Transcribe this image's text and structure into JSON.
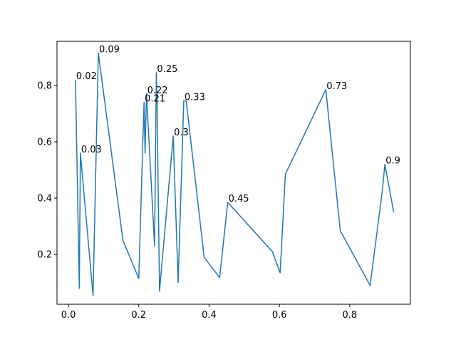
{
  "chart_data": {
    "type": "line",
    "title": "",
    "xlabel": "",
    "ylabel": "",
    "xlim": [
      -0.0325,
      0.9725
    ],
    "ylim": [
      0.0235,
      0.9565
    ],
    "grid": false,
    "x_ticks": [
      0.0,
      0.2,
      0.4,
      0.6,
      0.8
    ],
    "x_tick_labels": [
      "0.0",
      "0.2",
      "0.4",
      "0.6",
      "0.8"
    ],
    "y_ticks": [
      0.2,
      0.4,
      0.6,
      0.8
    ],
    "y_tick_labels": [
      "0.2",
      "0.4",
      "0.6",
      "0.8"
    ],
    "series": [
      {
        "color": "#1f77b4",
        "x": [
          0.02,
          0.031,
          0.034,
          0.07,
          0.085,
          0.155,
          0.2,
          0.215,
          0.218,
          0.222,
          0.245,
          0.25,
          0.252,
          0.259,
          0.298,
          0.312,
          0.328,
          0.335,
          0.386,
          0.43,
          0.453,
          0.58,
          0.602,
          0.617,
          0.732,
          0.773,
          0.858,
          0.893,
          0.9,
          0.925
        ],
        "y": [
          0.82,
          0.08,
          0.56,
          0.055,
          0.915,
          0.25,
          0.115,
          0.74,
          0.56,
          0.77,
          0.23,
          0.845,
          0.74,
          0.07,
          0.62,
          0.1,
          0.745,
          0.745,
          0.19,
          0.118,
          0.385,
          0.21,
          0.135,
          0.485,
          0.785,
          0.285,
          0.09,
          0.43,
          0.52,
          0.35
        ]
      }
    ],
    "annotations": [
      {
        "text": "0.02",
        "x": 0.02,
        "y": 0.82
      },
      {
        "text": "0.03",
        "x": 0.034,
        "y": 0.56
      },
      {
        "text": "0.09",
        "x": 0.085,
        "y": 0.915
      },
      {
        "text": "0.21",
        "x": 0.215,
        "y": 0.74
      },
      {
        "text": "0.22",
        "x": 0.222,
        "y": 0.77
      },
      {
        "text": "0.25",
        "x": 0.25,
        "y": 0.845
      },
      {
        "text": "0.3",
        "x": 0.298,
        "y": 0.62
      },
      {
        "text": "0.33",
        "x": 0.328,
        "y": 0.745
      },
      {
        "text": "0.45",
        "x": 0.453,
        "y": 0.385
      },
      {
        "text": "0.73",
        "x": 0.732,
        "y": 0.785
      },
      {
        "text": "0.9",
        "x": 0.9,
        "y": 0.52
      }
    ]
  }
}
